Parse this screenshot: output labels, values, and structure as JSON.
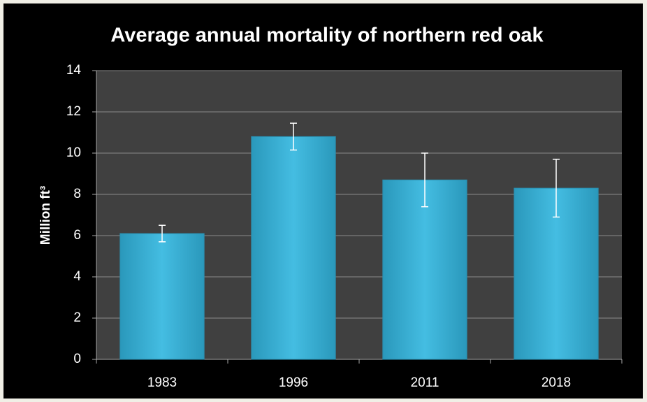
{
  "chart_data": {
    "type": "bar",
    "title": "Average annual mortality of northern red oak",
    "y_label": "Million ft³",
    "categories": [
      "1983",
      "1996",
      "2011",
      "2018"
    ],
    "values": [
      6.1,
      10.8,
      8.7,
      8.3
    ],
    "errors": [
      0.4,
      0.65,
      1.3,
      1.4
    ],
    "color": "#3cb6da",
    "ylim": [
      0,
      14
    ],
    "yticks": [
      0,
      2,
      4,
      6,
      8,
      10,
      12,
      14
    ],
    "grid": true
  }
}
